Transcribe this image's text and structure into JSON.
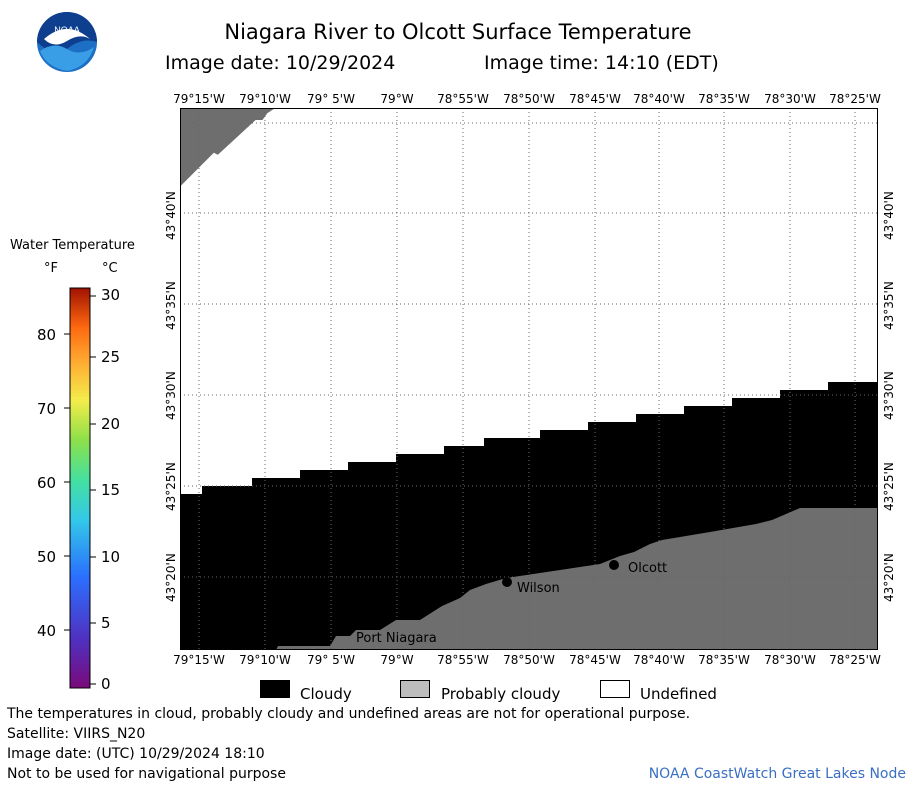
{
  "header": {
    "title": "Niagara River to Olcott Surface Temperature",
    "image_date": "Image date: 10/29/2024",
    "image_time": "Image time: 14:10 (EDT)"
  },
  "logo": {
    "text": "NOAA"
  },
  "map": {
    "lon_labels": [
      "79°15'W",
      "79°10'W",
      "79° 5'W",
      "79°W",
      "78°55'W",
      "78°50'W",
      "78°45'W",
      "78°40'W",
      "78°35'W",
      "78°30'W",
      "78°25'W"
    ],
    "lat_labels": [
      "43°40'N",
      "43°35'N",
      "43°30'N",
      "43°25'N",
      "43°20'N"
    ],
    "places": [
      {
        "name": "Wilson"
      },
      {
        "name": "Olcott"
      },
      {
        "name": "Port Niagara"
      }
    ]
  },
  "colorbar": {
    "title": "Water Temperature",
    "unit_f": "°F",
    "unit_c": "°C",
    "f_ticks": [
      "80",
      "70",
      "60",
      "50",
      "40"
    ],
    "c_ticks": [
      "30",
      "25",
      "20",
      "15",
      "10",
      "5",
      "0"
    ]
  },
  "legend": {
    "cloudy": "Cloudy",
    "probably_cloudy": "Probably cloudy",
    "undefined": "Undefined",
    "colors": {
      "cloudy": "#000000",
      "probably_cloudy": "#bdbdbd",
      "undefined": "#ffffff"
    }
  },
  "notes": {
    "line1": "The temperatures in cloud, probably cloudy and undefined areas are not for operational purpose.",
    "line2": "Satellite: VIIRS_N20",
    "line3": "Image date: (UTC) 10/29/2024  18:10",
    "line4": "Not to be used for navigational purpose"
  },
  "credit": "NOAA CoastWatch Great Lakes Node"
}
